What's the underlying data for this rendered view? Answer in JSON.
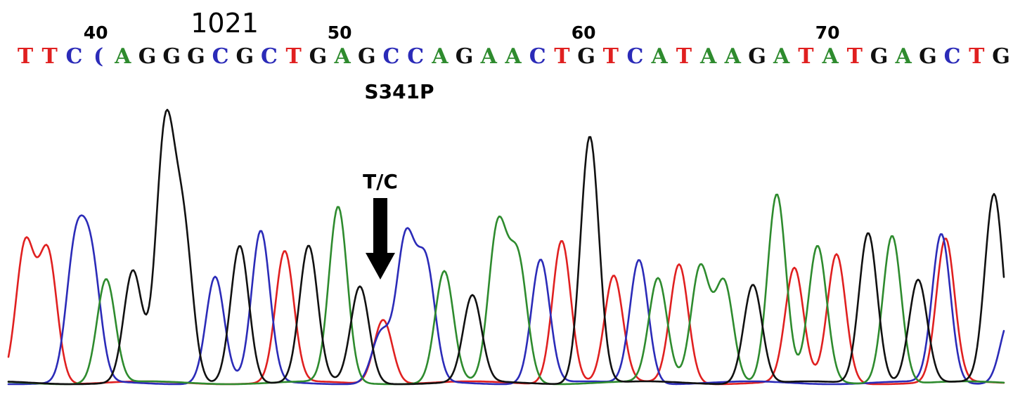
{
  "chart_data": {
    "type": "line",
    "title": "",
    "xlabel": "",
    "ylabel": "",
    "ylim": [
      0,
      1
    ],
    "colors": {
      "A": "#2e8b2e",
      "C": "#2b2bb8",
      "G": "#111111",
      "T": "#e02020"
    },
    "position_labels": [
      {
        "label": "40",
        "index": 3
      },
      {
        "label": "50",
        "index": 13
      },
      {
        "label": "60",
        "index": 23
      },
      {
        "label": "70",
        "index": 33
      }
    ],
    "reference_label": {
      "text": "1021",
      "index": 8
    },
    "sequence": [
      "T",
      "T",
      "C",
      "(",
      "A",
      "G",
      "G",
      "G",
      "C",
      "G",
      "C",
      "T",
      "G",
      "A",
      "G",
      "C",
      "C",
      "A",
      "G",
      "A",
      "A",
      "C",
      "T",
      "G",
      "T",
      "C",
      "A",
      "T",
      "A",
      "A",
      "G",
      "A",
      "T",
      "A",
      "T",
      "G",
      "A",
      "G",
      "C",
      "T",
      "G"
    ],
    "mutation": {
      "label": "S341P",
      "call": "T/C",
      "index": 15,
      "x_peak": 545,
      "x_center": 541
    },
    "x_range": [
      0,
      1441
    ],
    "series": [
      {
        "name": "T",
        "peaks": [
          {
            "x": 36,
            "h": 0.56
          },
          {
            "x": 68,
            "h": 0.53
          },
          {
            "x": 405,
            "h": 0.53
          },
          {
            "x": 545,
            "h": 0.26
          },
          {
            "x": 799,
            "h": 0.58
          },
          {
            "x": 873,
            "h": 0.43
          },
          {
            "x": 966,
            "h": 0.48
          },
          {
            "x": 1130,
            "h": 0.46
          },
          {
            "x": 1190,
            "h": 0.52
          },
          {
            "x": 1345,
            "h": 0.58
          }
        ]
      },
      {
        "name": "C",
        "peaks": [
          {
            "x": 107,
            "h": 0.52
          },
          {
            "x": 130,
            "h": 0.47
          },
          {
            "x": 306,
            "h": 0.43
          },
          {
            "x": 371,
            "h": 0.61
          },
          {
            "x": 542,
            "h": 0.2
          },
          {
            "x": 577,
            "h": 0.57
          },
          {
            "x": 606,
            "h": 0.47
          },
          {
            "x": 769,
            "h": 0.5
          },
          {
            "x": 909,
            "h": 0.5
          },
          {
            "x": 1339,
            "h": 0.6
          },
          {
            "x": 1436,
            "h": 0.26
          }
        ]
      },
      {
        "name": "A",
        "peaks": [
          {
            "x": 151,
            "h": 0.42
          },
          {
            "x": 481,
            "h": 0.71
          },
          {
            "x": 632,
            "h": 0.45
          },
          {
            "x": 708,
            "h": 0.62
          },
          {
            "x": 737,
            "h": 0.49
          },
          {
            "x": 936,
            "h": 0.42
          },
          {
            "x": 996,
            "h": 0.47
          },
          {
            "x": 1030,
            "h": 0.41
          },
          {
            "x": 1105,
            "h": 0.76
          },
          {
            "x": 1163,
            "h": 0.55
          },
          {
            "x": 1269,
            "h": 0.6
          }
        ]
      },
      {
        "name": "G",
        "peaks": [
          {
            "x": 189,
            "h": 0.45
          },
          {
            "x": 235,
            "h": 1.0
          },
          {
            "x": 261,
            "h": 0.6
          },
          {
            "x": 341,
            "h": 0.56
          },
          {
            "x": 439,
            "h": 0.55
          },
          {
            "x": 512,
            "h": 0.39
          },
          {
            "x": 672,
            "h": 0.35
          },
          {
            "x": 839,
            "h": 1.0
          },
          {
            "x": 1071,
            "h": 0.4
          },
          {
            "x": 1235,
            "h": 0.61
          },
          {
            "x": 1306,
            "h": 0.42
          },
          {
            "x": 1414,
            "h": 0.76
          }
        ]
      }
    ]
  }
}
